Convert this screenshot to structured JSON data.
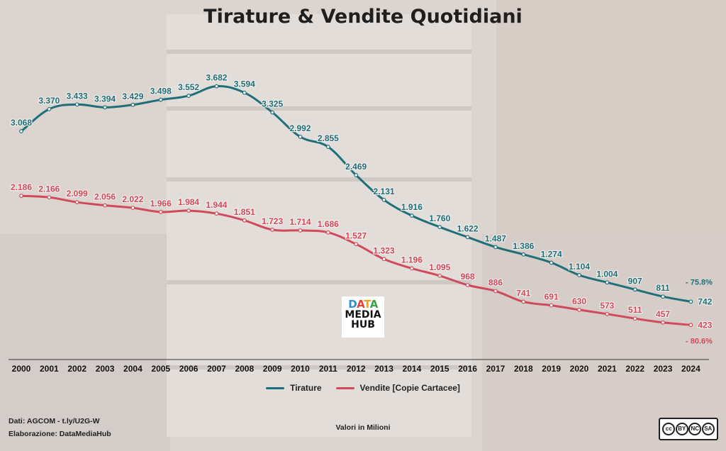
{
  "title": "Tirature & Vendite Quotidiani",
  "logo": {
    "line1": "DATA",
    "line2": "MEDIA",
    "line3": "HUB"
  },
  "source_text": "Dati: AGCOM - t.ly/U2G-W",
  "elaboration_text": "Elaborazione: DataMediaHub",
  "units_text": "Valori in Milioni",
  "license": {
    "cc": "cc",
    "by": "BY",
    "nc": "NC",
    "sa": "SA"
  },
  "legend": [
    {
      "label": "Tirature",
      "color": "#1f6f7a"
    },
    {
      "label": "Vendite [Copie Cartacee]",
      "color": "#d04a5c"
    }
  ],
  "change_labels": {
    "tirature": "- 75.8%",
    "vendite": "- 80.6%"
  },
  "chart_data": {
    "type": "line",
    "title": "Tirature & Vendite Quotidiani",
    "categories": [
      "2000",
      "2001",
      "2002",
      "2003",
      "2004",
      "2005",
      "2006",
      "2007",
      "2008",
      "2009",
      "2010",
      "2011",
      "2012",
      "2013",
      "2014",
      "2015",
      "2016",
      "2017",
      "2018",
      "2019",
      "2020",
      "2021",
      "2022",
      "2023",
      "2024"
    ],
    "ylim": [
      0,
      4000
    ],
    "grid": false,
    "legend_position": "bottom",
    "series": [
      {
        "name": "Tirature",
        "color": "#1f6f7a",
        "values": [
          3068,
          3370,
          3433,
          3394,
          3429,
          3498,
          3552,
          3682,
          3594,
          3325,
          2992,
          2855,
          2469,
          2131,
          1916,
          1760,
          1622,
          1487,
          1386,
          1274,
          1104,
          1004,
          907,
          811,
          742
        ],
        "labels": [
          "3.068",
          "3.370",
          "3.433",
          "3.394",
          "3.429",
          "3.498",
          "3.552",
          "3.682",
          "3.594",
          "3.325",
          "2.992",
          "2.855",
          "2.469",
          "2.131",
          "1.916",
          "1.760",
          "1.622",
          "1.487",
          "1.386",
          "1.274",
          "1.104",
          "1.004",
          "907",
          "811",
          "742"
        ]
      },
      {
        "name": "Vendite [Copie Cartacee]",
        "color": "#d04a5c",
        "values": [
          2186,
          2166,
          2099,
          2056,
          2022,
          1966,
          1984,
          1944,
          1851,
          1723,
          1714,
          1686,
          1527,
          1323,
          1196,
          1095,
          968,
          886,
          741,
          691,
          630,
          573,
          511,
          457,
          423
        ],
        "labels": [
          "2.186",
          "2.166",
          "2.099",
          "2.056",
          "2.022",
          "1.966",
          "1.984",
          "1.944",
          "1.851",
          "1.723",
          "1.714",
          "1.686",
          "1.527",
          "1.323",
          "1.196",
          "1.095",
          "968",
          "886",
          "741",
          "691",
          "630",
          "573",
          "511",
          "457",
          "423"
        ]
      }
    ]
  }
}
